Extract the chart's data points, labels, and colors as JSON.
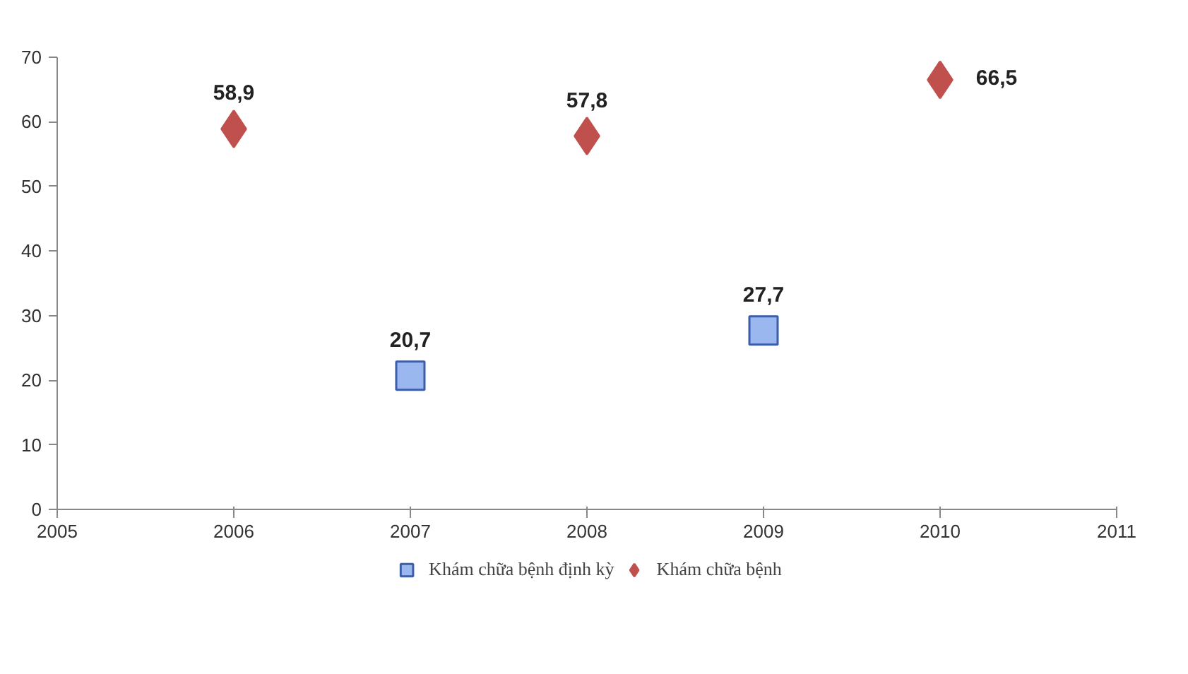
{
  "chart_data": {
    "type": "scatter",
    "xlim": [
      2005,
      2011
    ],
    "xticks": [
      2005,
      2006,
      2007,
      2008,
      2009,
      2010,
      2011
    ],
    "ylim": [
      0,
      70
    ],
    "yticks": [
      0,
      10,
      20,
      30,
      40,
      50,
      60,
      70
    ],
    "grid": false,
    "legend": "bottom",
    "series": [
      {
        "name": "Khám chữa bệnh định kỳ",
        "color": "#9bb7f0",
        "marker": "square",
        "x": [
          2007,
          2009
        ],
        "values": [
          20.7,
          27.7
        ],
        "value_labels": [
          "20,7",
          "27,7"
        ]
      },
      {
        "name": "Khám chữa bệnh",
        "color": "#c0504d",
        "marker": "diamond",
        "x": [
          2006,
          2008,
          2010
        ],
        "values": [
          58.9,
          57.8,
          66.5
        ],
        "value_labels": [
          "58,9",
          "57,8",
          "66,5"
        ]
      }
    ]
  }
}
